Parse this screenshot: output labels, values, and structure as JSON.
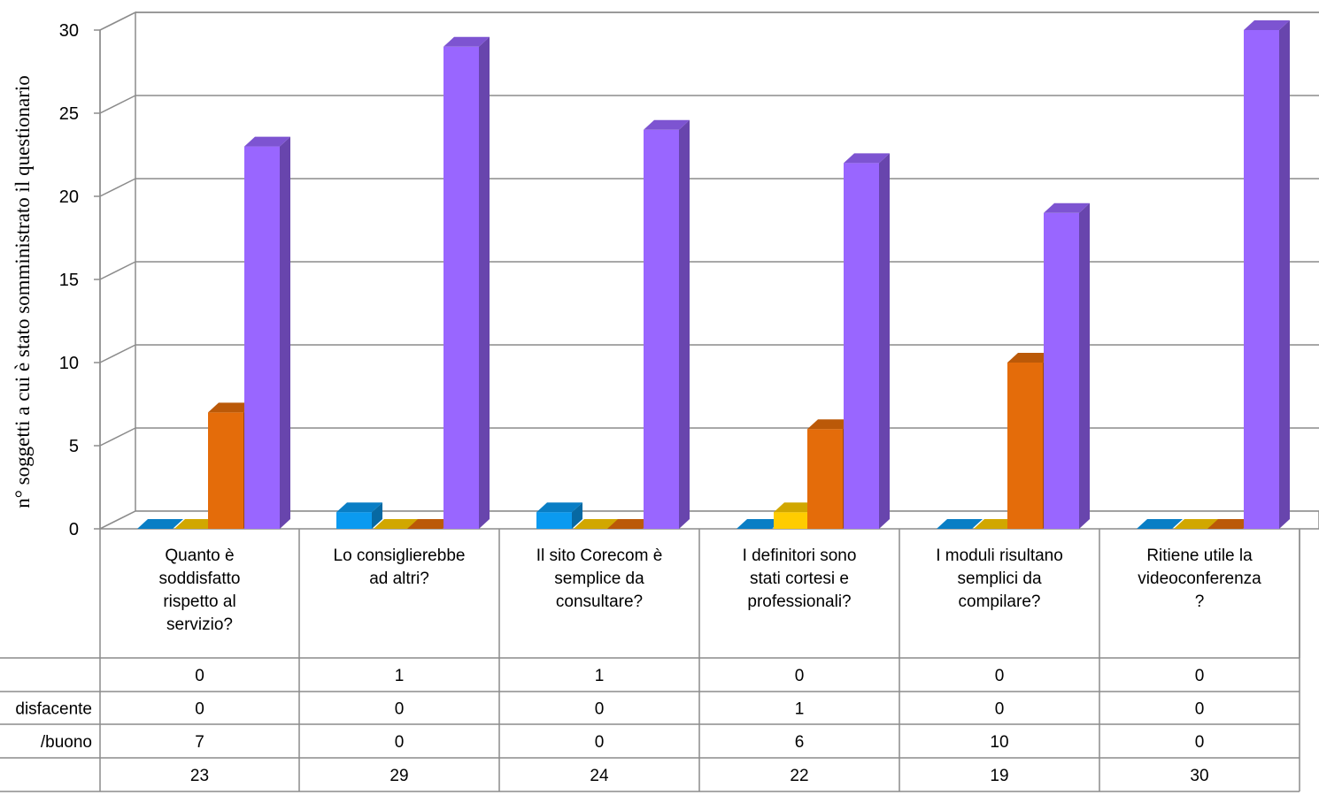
{
  "chart_data": {
    "type": "bar",
    "ylabel": "n° soggetti a cui è stato somministrato il questionario",
    "ylim": [
      0,
      30
    ],
    "yticks": [
      "0",
      "5",
      "10",
      "15",
      "20",
      "25",
      "30"
    ],
    "categories": [
      [
        "Quanto è",
        "soddisfatto",
        "rispetto al",
        "servizio?"
      ],
      [
        "Lo consiglierebbe",
        "ad altri?"
      ],
      [
        "Il sito Corecom è",
        "semplice da",
        "consultare?"
      ],
      [
        "I definitori sono",
        "stati cortesi e",
        "professionali?"
      ],
      [
        "I moduli risultano",
        "semplici da",
        "compilare?"
      ],
      [
        "Ritiene utile la",
        "videoconferenza",
        "?"
      ]
    ],
    "series": [
      {
        "name": "",
        "color": "#0b9af0",
        "values": [
          0,
          1,
          1,
          0,
          0,
          0
        ]
      },
      {
        "name": "disfacente",
        "color": "#ffcc00",
        "values": [
          0,
          0,
          0,
          1,
          0,
          0
        ]
      },
      {
        "name": "/buono",
        "color": "#e46c0a",
        "values": [
          7,
          0,
          0,
          6,
          10,
          0
        ]
      },
      {
        "name": "",
        "color": "#9966ff",
        "values": [
          23,
          29,
          24,
          22,
          19,
          30
        ]
      }
    ],
    "grid": true,
    "legend": "data-table-left"
  }
}
